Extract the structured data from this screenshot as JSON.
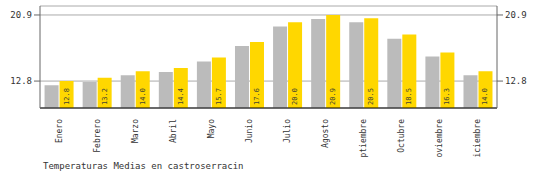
{
  "chart_data": {
    "type": "bar",
    "title": "Temperaturas Medias en castroserracin",
    "categories": [
      "Enero",
      "Febrero",
      "Marzo",
      "Abril",
      "Mayo",
      "Junio",
      "Julio",
      "Agosto",
      "Septiembre",
      "Octubre",
      "Noviembre",
      "Diciembre"
    ],
    "series": [
      {
        "color": "#BBBBBB",
        "values": [
          12.3,
          12.7,
          13.5,
          13.9,
          15.2,
          17.1,
          19.5,
          20.4,
          20.0,
          18.0,
          15.8,
          13.5
        ]
      },
      {
        "color": "#FFD700",
        "values": [
          12.8,
          13.2,
          14.0,
          14.4,
          15.7,
          17.6,
          20.0,
          20.9,
          20.5,
          18.5,
          16.3,
          14.0
        ],
        "value_labels": [
          "12.8",
          "13.2",
          "14.0",
          "14.4",
          "15.7",
          "17.6",
          "20.0",
          "20.9",
          "20.5",
          "18.5",
          "16.3",
          "14.0"
        ],
        "data_labels": true
      }
    ],
    "ylim": [
      9.5,
      22.0
    ],
    "yticks": [
      12.8,
      20.9
    ],
    "y2lim": [
      9.5,
      22.0
    ],
    "y2ticks": [
      12.8,
      20.9
    ],
    "grid": true
  }
}
